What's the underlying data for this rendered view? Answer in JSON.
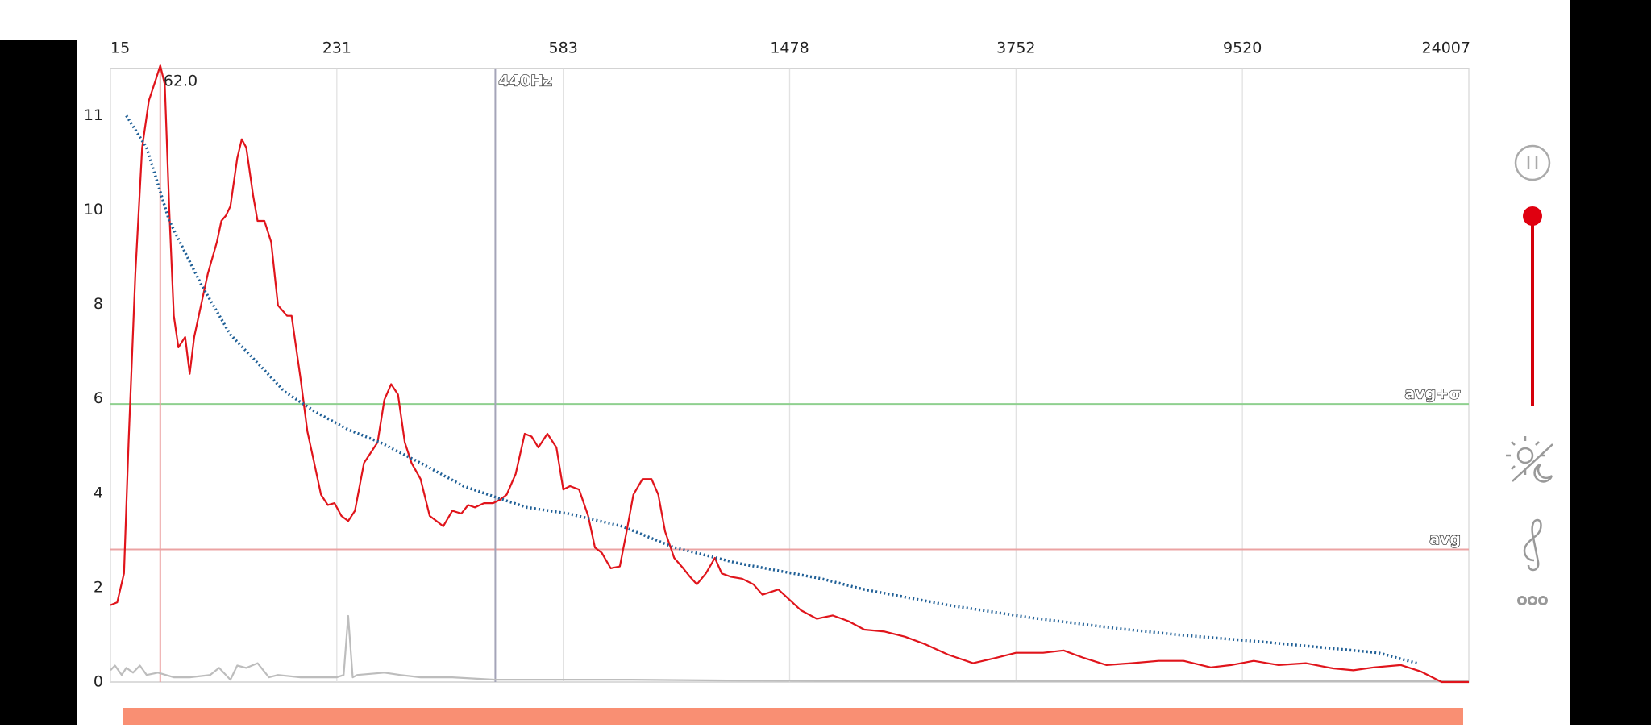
{
  "chart_data": {
    "type": "line",
    "xlim": [
      0,
      6
    ],
    "xticks": [
      {
        "value": 0,
        "label": "15"
      },
      {
        "value": 1,
        "label": "231"
      },
      {
        "value": 2,
        "label": "583"
      },
      {
        "value": 3,
        "label": "1478"
      },
      {
        "value": 4,
        "label": "3752"
      },
      {
        "value": 5,
        "label": "9520"
      },
      {
        "value": 6,
        "label": "24007"
      }
    ],
    "ylim": [
      0,
      11.5
    ],
    "yticks": [
      0,
      2,
      4,
      6,
      8,
      10,
      11
    ],
    "grid": true,
    "series": [
      {
        "color": "#bdbdbd",
        "style": "solid",
        "x": [
          0,
          0.02,
          0.05,
          0.07,
          0.1,
          0.13,
          0.16,
          0.21,
          0.28,
          0.35,
          0.44,
          0.48,
          0.53,
          0.56,
          0.6,
          0.65,
          0.7,
          0.74,
          0.84,
          0.93,
          1,
          1.03,
          1.05,
          1.07,
          1.09,
          1.21,
          1.28,
          1.37,
          1.51,
          1.7,
          1.98,
          2.3,
          2.77,
          3.7,
          4.63,
          6
        ],
        "values": [
          0.25,
          0.35,
          0.15,
          0.3,
          0.2,
          0.35,
          0.15,
          0.2,
          0.1,
          0.1,
          0.15,
          0.3,
          0.05,
          0.35,
          0.3,
          0.4,
          0.1,
          0.15,
          0.1,
          0.1,
          0.1,
          0.15,
          1.4,
          0.1,
          0.15,
          0.2,
          0.15,
          0.1,
          0.1,
          0.05,
          0.05,
          0.05,
          0.03,
          0.02,
          0.02,
          0.02
        ]
      },
      {
        "color": "#e0141b",
        "style": "solid",
        "x": [
          0,
          0.03,
          0.06,
          0.08,
          0.11,
          0.14,
          0.17,
          0.2,
          0.22,
          0.24,
          0.26,
          0.28,
          0.3,
          0.33,
          0.35,
          0.37,
          0.4,
          0.43,
          0.47,
          0.49,
          0.51,
          0.53,
          0.56,
          0.58,
          0.6,
          0.63,
          0.65,
          0.68,
          0.71,
          0.74,
          0.78,
          0.8,
          0.84,
          0.87,
          0.9,
          0.93,
          0.96,
          0.99,
          1.02,
          1.05,
          1.08,
          1.12,
          1.15,
          1.18,
          1.21,
          1.24,
          1.27,
          1.3,
          1.33,
          1.37,
          1.41,
          1.44,
          1.47,
          1.51,
          1.55,
          1.58,
          1.61,
          1.65,
          1.69,
          1.72,
          1.75,
          1.79,
          1.83,
          1.86,
          1.89,
          1.93,
          1.97,
          2,
          2.03,
          2.07,
          2.11,
          2.14,
          2.17,
          2.21,
          2.25,
          2.28,
          2.31,
          2.35,
          2.39,
          2.42,
          2.45,
          2.49,
          2.53,
          2.56,
          2.59,
          2.63,
          2.67,
          2.7,
          2.74,
          2.79,
          2.84,
          2.88,
          2.95,
          3,
          3.05,
          3.12,
          3.19,
          3.26,
          3.33,
          3.42,
          3.51,
          3.6,
          3.7,
          3.81,
          3.91,
          4,
          4.12,
          4.21,
          4.3,
          4.4,
          4.51,
          4.63,
          4.74,
          4.86,
          4.95,
          5.05,
          5.16,
          5.28,
          5.4,
          5.49,
          5.58,
          5.7,
          5.79,
          5.88,
          6
        ],
        "values": [
          1.63,
          1.69,
          2.3,
          5.08,
          8.65,
          10.66,
          11.16,
          11.38,
          11.53,
          11.33,
          9.99,
          7.76,
          7.09,
          7.31,
          6.53,
          7.31,
          7.98,
          8.65,
          9.32,
          9.77,
          9.88,
          10.04,
          10.55,
          10.75,
          10.66,
          10.16,
          9.77,
          9.77,
          9.32,
          7.98,
          7.76,
          7.76,
          6.42,
          5.31,
          4.64,
          3.97,
          3.75,
          3.79,
          3.52,
          3.41,
          3.63,
          4.64,
          4.86,
          5.08,
          5.98,
          6.31,
          6.09,
          5.08,
          4.64,
          4.3,
          3.52,
          3.41,
          3.3,
          3.63,
          3.57,
          3.75,
          3.7,
          3.79,
          3.79,
          3.86,
          3.97,
          4.41,
          5.26,
          5.2,
          4.97,
          5.26,
          4.97,
          4.08,
          4.15,
          4.08,
          3.52,
          2.85,
          2.74,
          2.41,
          2.45,
          3.19,
          3.97,
          4.3,
          4.3,
          3.97,
          3.19,
          2.63,
          2.41,
          2.23,
          2.07,
          2.3,
          2.63,
          2.3,
          2.23,
          2.19,
          2.07,
          1.85,
          1.96,
          1.74,
          1.52,
          1.34,
          1.41,
          1.29,
          1.11,
          1.07,
          0.96,
          0.8,
          0.58,
          0.4,
          0.51,
          0.62,
          0.62,
          0.67,
          0.51,
          0.36,
          0.4,
          0.45,
          0.45,
          0.31,
          0.36,
          0.45,
          0.36,
          0.4,
          0.29,
          0.25,
          0.31,
          0.36,
          0.22,
          0,
          0
        ]
      },
      {
        "color": "#1f5f96",
        "style": "dotted",
        "x": [
          0.07,
          0.16,
          0.26,
          0.4,
          0.53,
          0.65,
          0.77,
          0.91,
          1.05,
          1.19,
          1.37,
          1.56,
          1.7,
          1.84,
          2.02,
          2.26,
          2.49,
          2.77,
          3.14,
          3.33,
          3.7,
          4.07,
          4.44,
          4.72,
          5.09,
          5.6,
          5.77
        ],
        "values": [
          11.0,
          10.66,
          9.77,
          8.43,
          7.36,
          6.76,
          6.15,
          5.71,
          5.35,
          5.08,
          4.64,
          4.15,
          3.92,
          3.7,
          3.57,
          3.3,
          2.85,
          2.52,
          2.19,
          1.96,
          1.63,
          1.36,
          1.14,
          1.0,
          0.85,
          0.62,
          0.4
        ]
      }
    ],
    "reference_lines": [
      {
        "label": "avg+σ",
        "value": 5.89,
        "color": "#8fd08f"
      },
      {
        "label": "avg",
        "value": 2.81,
        "color": "#eba3a3"
      }
    ],
    "markers": [
      {
        "label": "62.0",
        "x": 0.22,
        "color": "#eba3a3"
      },
      {
        "label": "440Hz",
        "x": 1.7,
        "color": "#a4a4b8"
      }
    ]
  }
}
